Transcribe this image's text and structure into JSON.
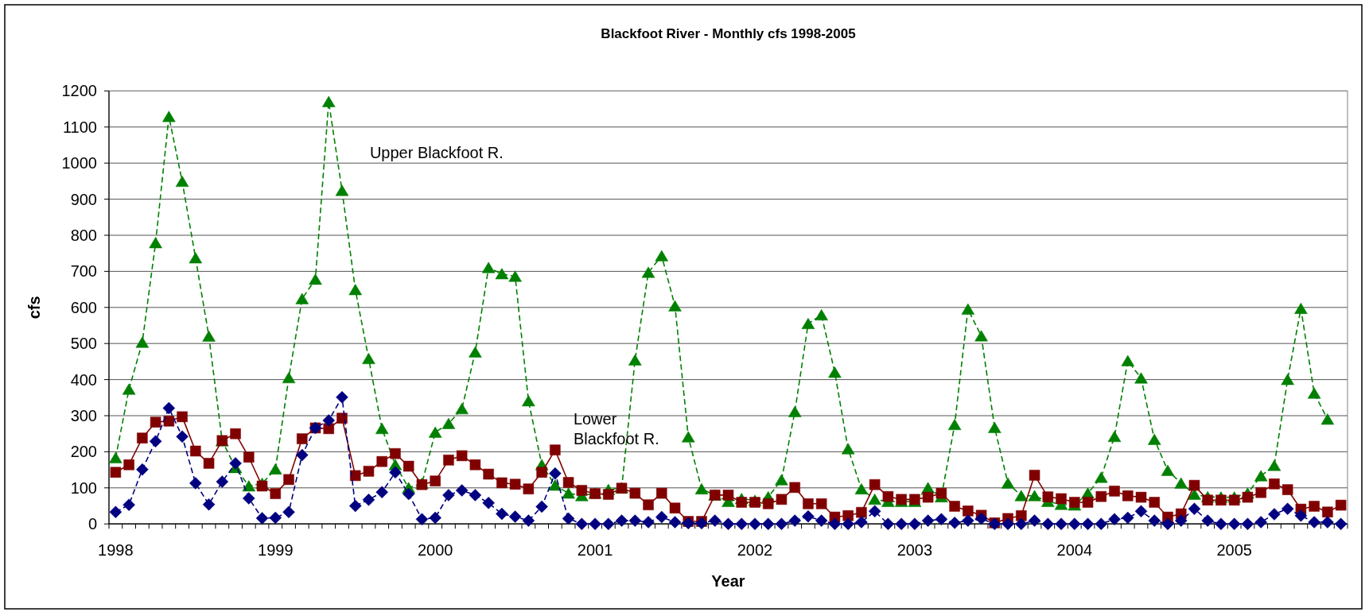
{
  "chart_data": {
    "type": "line",
    "title": "Blackfoot River - Monthly cfs 1998-2005",
    "xlabel": "Year",
    "ylabel": "cfs",
    "categories": [
      "1998",
      null,
      null,
      null,
      null,
      null,
      null,
      null,
      null,
      null,
      null,
      null,
      "1999",
      null,
      null,
      null,
      null,
      null,
      null,
      null,
      null,
      null,
      null,
      null,
      "2000",
      null,
      null,
      null,
      null,
      null,
      null,
      null,
      null,
      null,
      null,
      null,
      "2001",
      null,
      null,
      null,
      null,
      null,
      null,
      null,
      null,
      null,
      null,
      null,
      "2002",
      null,
      null,
      null,
      null,
      null,
      null,
      null,
      null,
      null,
      null,
      null,
      "2003",
      null,
      null,
      null,
      null,
      null,
      null,
      null,
      null,
      null,
      null,
      null,
      "2004",
      null,
      null,
      null,
      null,
      null,
      null,
      null,
      null,
      null,
      null,
      null,
      "2005",
      null,
      null,
      null,
      null,
      null,
      null,
      null,
      null
    ],
    "ylim": [
      0,
      1200
    ],
    "yticks": [
      0,
      100,
      200,
      300,
      400,
      500,
      600,
      700,
      800,
      900,
      1000,
      1100,
      1200
    ],
    "grid": "y",
    "series": [
      {
        "name": "Upper Blackfoot R.",
        "color": "#008000",
        "marker": "triangle",
        "line_style": "dashed",
        "values": [
          183,
          373,
          503,
          779,
          1129,
          949,
          737,
          520,
          230,
          156,
          105,
          112,
          152,
          405,
          624,
          678,
          1170,
          924,
          649,
          458,
          264,
          164,
          100,
          112,
          254,
          278,
          319,
          476,
          710,
          693,
          686,
          341,
          164,
          107,
          85,
          78,
          85,
          95,
          100,
          454,
          697,
          743,
          604,
          241,
          97,
          80,
          62,
          70,
          65,
          75,
          122,
          311,
          555,
          579,
          420,
          208,
          97,
          68,
          62,
          62,
          62,
          100,
          75,
          275,
          595,
          521,
          267,
          113,
          78,
          78,
          62,
          54,
          52,
          85,
          129,
          242,
          452,
          404,
          234,
          148,
          113,
          82,
          75,
          74,
          74,
          85,
          133,
          162,
          400,
          597,
          362,
          290,
          null
        ]
      },
      {
        "name": "Lower Blackfoot R.",
        "color": "#800000",
        "marker": "square",
        "line_style": "solid",
        "values": [
          143,
          164,
          238,
          282,
          285,
          297,
          202,
          168,
          231,
          250,
          185,
          105,
          84,
          123,
          236,
          266,
          264,
          293,
          134,
          146,
          173,
          195,
          160,
          109,
          119,
          177,
          189,
          164,
          138,
          114,
          110,
          97,
          143,
          205,
          115,
          93,
          84,
          82,
          99,
          85,
          53,
          85,
          44,
          7,
          7,
          80,
          80,
          60,
          60,
          56,
          68,
          101,
          56,
          56,
          19,
          23,
          32,
          109,
          76,
          68,
          68,
          74,
          85,
          49,
          36,
          24,
          3,
          15,
          23,
          135,
          75,
          70,
          60,
          60,
          76,
          91,
          78,
          74,
          60,
          19,
          28,
          107,
          66,
          66,
          66,
          74,
          87,
          111,
          95,
          41,
          49,
          33,
          52
        ]
      },
      {
        "color": "#000080",
        "marker": "diamond",
        "line_style": "dashed",
        "values": [
          33,
          53,
          151,
          229,
          321,
          242,
          113,
          54,
          117,
          168,
          71,
          16,
          17,
          33,
          191,
          266,
          287,
          351,
          50,
          67,
          88,
          143,
          83,
          13,
          17,
          80,
          93,
          80,
          58,
          28,
          20,
          9,
          48,
          140,
          15,
          0,
          0,
          0,
          9,
          9,
          5,
          19,
          5,
          2,
          2,
          9,
          0,
          0,
          0,
          0,
          0,
          9,
          21,
          9,
          0,
          0,
          5,
          35,
          0,
          0,
          0,
          9,
          13,
          3,
          9,
          15,
          0,
          0,
          0,
          9,
          0,
          0,
          0,
          0,
          0,
          13,
          17,
          35,
          9,
          0,
          9,
          42,
          9,
          0,
          0,
          0,
          5,
          27,
          42,
          23,
          5,
          5,
          0
        ]
      }
    ]
  }
}
